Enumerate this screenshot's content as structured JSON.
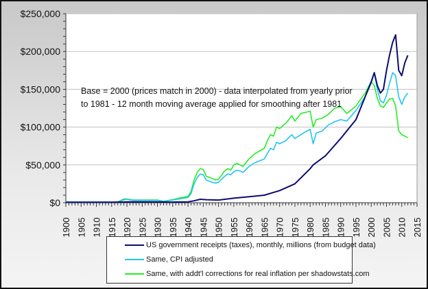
{
  "chart_data": {
    "type": "line",
    "title": "",
    "xlabel": "",
    "ylabel": "",
    "xlim": [
      1900,
      2015
    ],
    "ylim": [
      0,
      250000
    ],
    "grid": true,
    "legend_position": "bottom",
    "y_ticks": [
      "$0",
      "$50,000",
      "$100,000",
      "$150,000",
      "$200,000",
      "$250,000"
    ],
    "y_tick_values": [
      0,
      50000,
      100000,
      150000,
      200000,
      250000
    ],
    "x_ticks": [
      "1900",
      "1905",
      "1910",
      "1915",
      "1920",
      "1925",
      "1930",
      "1935",
      "1940",
      "1945",
      "1950",
      "1955",
      "1960",
      "1965",
      "1970",
      "1975",
      "1980",
      "1985",
      "1990",
      "1995",
      "2000",
      "2005",
      "2010",
      "2015"
    ],
    "annotation": [
      "Base = 2000 (prices match in 2000) - data interpolated from yearly prior",
      "to 1981 - 12 month moving average applied for smoothing after 1981"
    ],
    "series": [
      {
        "name": "US government receipts (taxes), monthly, millions (from budget data)",
        "color": "#0b0b6e",
        "x": [
          1900,
          1915,
          1917,
          1920,
          1930,
          1935,
          1940,
          1942,
          1944,
          1946,
          1950,
          1955,
          1960,
          1965,
          1970,
          1975,
          1980,
          1981,
          1985,
          1990,
          1995,
          2000,
          2001,
          2002,
          2003,
          2004,
          2005,
          2006,
          2007,
          2008,
          2009,
          2010,
          2011,
          2012
        ],
        "y": [
          500,
          500,
          800,
          1200,
          1000,
          800,
          1200,
          2500,
          4500,
          4000,
          3500,
          6000,
          8000,
          10000,
          16000,
          25000,
          45000,
          50000,
          62000,
          85000,
          110000,
          160000,
          172000,
          155000,
          145000,
          150000,
          175000,
          195000,
          212000,
          222000,
          175000,
          168000,
          185000,
          195000
        ]
      },
      {
        "name": "Same, CPI adjusted",
        "color": "#22c4f0",
        "x": [
          1900,
          1917,
          1919,
          1920,
          1922,
          1930,
          1932,
          1935,
          1938,
          1940,
          1941,
          1942,
          1943,
          1944,
          1945,
          1946,
          1948,
          1949,
          1950,
          1952,
          1953,
          1954,
          1955,
          1956,
          1957,
          1958,
          1960,
          1962,
          1965,
          1966,
          1967,
          1968,
          1969,
          1970,
          1972,
          1974,
          1975,
          1977,
          1979,
          1980,
          1981,
          1982,
          1984,
          1986,
          1988,
          1990,
          1992,
          1995,
          1998,
          2000,
          2001,
          2002,
          2003,
          2004,
          2005,
          2006,
          2007,
          2008,
          2009,
          2010,
          2011,
          2012
        ],
        "y": [
          1000,
          1000,
          4000,
          4500,
          3000,
          3000,
          1800,
          3500,
          5500,
          7000,
          12000,
          25000,
          33000,
          38000,
          37000,
          30000,
          27000,
          26000,
          27000,
          35000,
          38000,
          37000,
          41000,
          43000,
          42000,
          40000,
          48000,
          53000,
          58000,
          65000,
          72000,
          70000,
          80000,
          78000,
          82000,
          90000,
          85000,
          90000,
          95000,
          97000,
          78000,
          92000,
          95000,
          103000,
          107000,
          110000,
          108000,
          122000,
          140000,
          158000,
          172000,
          150000,
          135000,
          132000,
          142000,
          158000,
          172000,
          168000,
          140000,
          130000,
          140000,
          145000
        ]
      },
      {
        "name": "Same, with addt'l corrections for real inflation per shadowstats.com",
        "color": "#22ee22",
        "x": [
          1900,
          1917,
          1919,
          1920,
          1922,
          1930,
          1932,
          1935,
          1938,
          1940,
          1941,
          1942,
          1943,
          1944,
          1945,
          1946,
          1948,
          1949,
          1950,
          1952,
          1953,
          1954,
          1955,
          1956,
          1957,
          1958,
          1960,
          1962,
          1965,
          1966,
          1967,
          1968,
          1969,
          1970,
          1972,
          1974,
          1975,
          1977,
          1979,
          1980,
          1981,
          1982,
          1984,
          1986,
          1988,
          1990,
          1992,
          1995,
          1998,
          2000,
          2001,
          2002,
          2003,
          2004,
          2005,
          2006,
          2007,
          2008,
          2009,
          2010,
          2011,
          2012
        ],
        "y": [
          1000,
          1000,
          5000,
          5000,
          3500,
          3500,
          2000,
          4000,
          7000,
          8500,
          15000,
          30000,
          40000,
          45000,
          44000,
          35000,
          32000,
          30000,
          31000,
          42000,
          45000,
          43000,
          50000,
          52000,
          50000,
          48000,
          58000,
          65000,
          72000,
          82000,
          90000,
          88000,
          100000,
          98000,
          105000,
          115000,
          108000,
          118000,
          120000,
          121000,
          100000,
          110000,
          112000,
          117000,
          125000,
          127000,
          118000,
          128000,
          145000,
          160000,
          155000,
          138000,
          128000,
          126000,
          132000,
          137000,
          138000,
          128000,
          95000,
          90000,
          88000,
          86000
        ]
      }
    ]
  }
}
